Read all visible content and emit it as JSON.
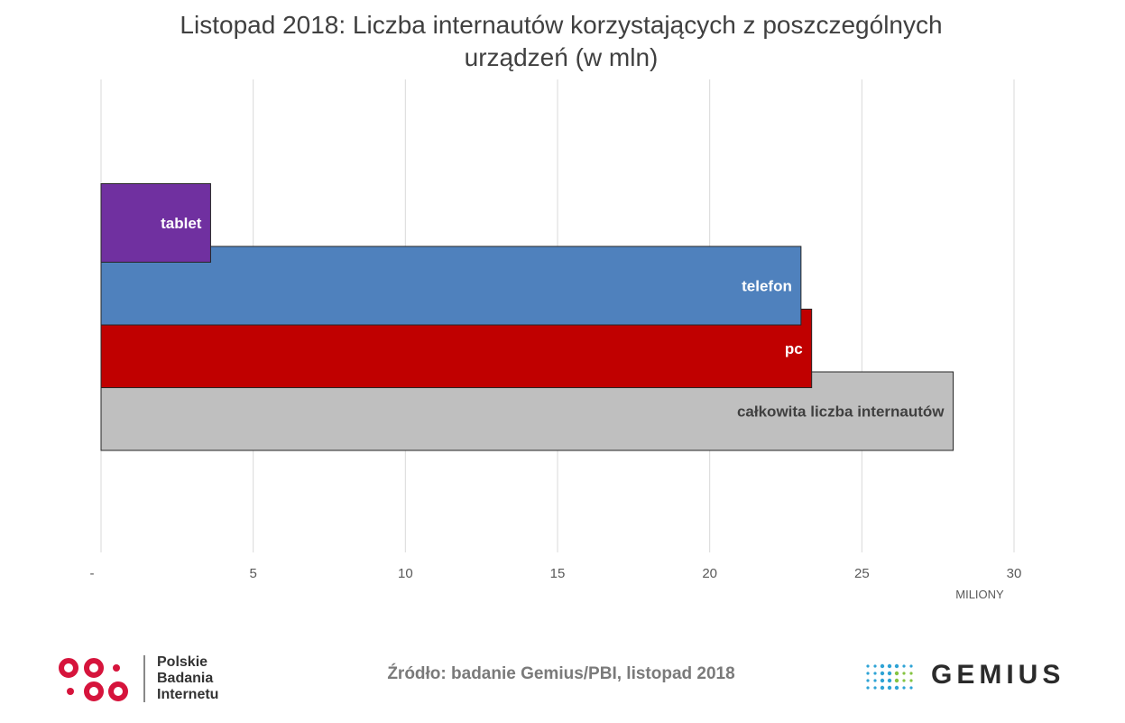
{
  "title": {
    "line1": "Listopad 2018: Liczba internautów korzystających z poszczególnych",
    "line2": "urządzeń (w mln)"
  },
  "chart_data": {
    "type": "bar",
    "orientation": "horizontal",
    "categories": [
      "tablet",
      "telefon",
      "pc",
      "całkowita liczba internautów"
    ],
    "values": [
      3.6,
      23.0,
      23.35,
      28.0
    ],
    "colors": [
      "#7030a0",
      "#4f81bd",
      "#c00000",
      "#bfbfbf"
    ],
    "label_colors": [
      "#ffffff",
      "#ffffff",
      "#ffffff",
      "#404040"
    ],
    "xlim": [
      0,
      30
    ],
    "x_ticks": [
      {
        "value": 0,
        "label": "-"
      },
      {
        "value": 5,
        "label": "5"
      },
      {
        "value": 10,
        "label": "10"
      },
      {
        "value": 15,
        "label": "15"
      },
      {
        "value": 20,
        "label": "20"
      },
      {
        "value": 25,
        "label": "25"
      },
      {
        "value": 30,
        "label": "30"
      }
    ],
    "xlabel": "MILIONY",
    "grid": true,
    "grid_color": "#d9d9d9"
  },
  "source": "Źródło: badanie Gemius/PBI, listopad 2018",
  "logos": {
    "pbi": [
      "Polskie",
      "Badania",
      "Internetu"
    ],
    "pbi_color": "#d6143c",
    "gemius": "GEMIUS",
    "gemius_dot_colors": [
      "#2ea3d5",
      "#85c441"
    ]
  }
}
